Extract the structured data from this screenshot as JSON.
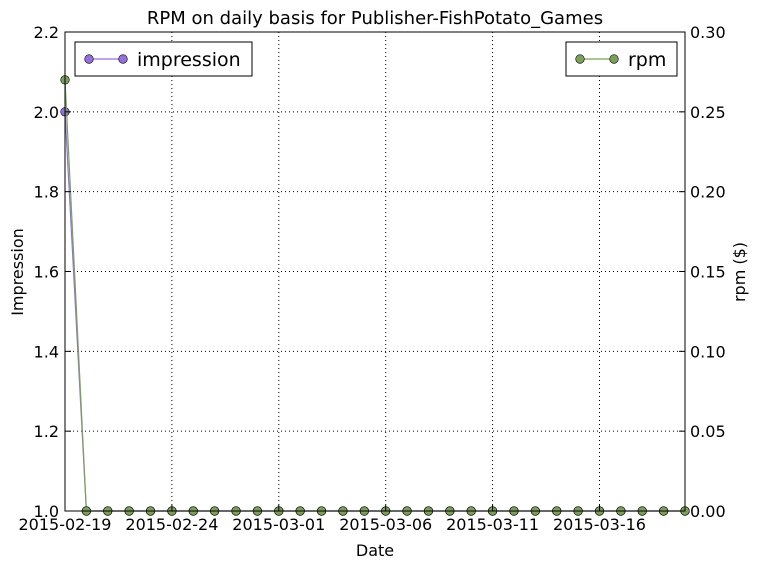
{
  "chart_data": {
    "type": "line",
    "title": "RPM on daily basis for Publisher-FishPotato_Games",
    "xlabel": "Date",
    "ylabel_left": "Impression",
    "ylabel_right": "rpm ($)",
    "x_tick_labels": [
      "2015-02-19",
      "2015-02-24",
      "2015-03-01",
      "2015-03-06",
      "2015-03-11",
      "2015-03-16"
    ],
    "left_y_ticks": [
      1.0,
      1.2,
      1.4,
      1.6,
      1.8,
      2.0,
      2.2
    ],
    "left_y_tick_labels": [
      "1.0",
      "1.2",
      "1.4",
      "1.6",
      "1.8",
      "2.0",
      "2.2"
    ],
    "right_y_ticks": [
      0.0,
      0.05,
      0.1,
      0.15,
      0.2,
      0.25,
      0.3
    ],
    "right_y_tick_labels": [
      "0.00",
      "0.05",
      "0.10",
      "0.15",
      "0.20",
      "0.25",
      "0.30"
    ],
    "ylim_left": [
      1.0,
      2.2
    ],
    "ylim_right": [
      0.0,
      0.3
    ],
    "grid": true,
    "x": [
      "2015-02-19",
      "2015-02-20",
      "2015-02-21",
      "2015-02-22",
      "2015-02-23",
      "2015-02-24",
      "2015-02-25",
      "2015-02-26",
      "2015-02-27",
      "2015-02-28",
      "2015-03-01",
      "2015-03-02",
      "2015-03-03",
      "2015-03-04",
      "2015-03-05",
      "2015-03-06",
      "2015-03-07",
      "2015-03-08",
      "2015-03-09",
      "2015-03-10",
      "2015-03-11",
      "2015-03-12",
      "2015-03-13",
      "2015-03-14",
      "2015-03-15",
      "2015-03-16",
      "2015-03-17",
      "2015-03-18",
      "2015-03-19",
      "2015-03-20"
    ],
    "series": [
      {
        "name": "impression",
        "axis": "left",
        "color": "#9370db",
        "legend_position": "upper-left",
        "values": [
          2,
          1,
          1,
          1,
          1,
          1,
          1,
          1,
          1,
          1,
          1,
          1,
          1,
          1,
          1,
          1,
          1,
          1,
          1,
          1,
          1,
          1,
          1,
          1,
          1,
          1,
          1,
          1,
          1,
          1
        ]
      },
      {
        "name": "rpm",
        "axis": "right",
        "color": "#7ba05b",
        "legend_position": "upper-right",
        "values": [
          0.27,
          0,
          0,
          0,
          0,
          0,
          0,
          0,
          0,
          0,
          0,
          0,
          0,
          0,
          0,
          0,
          0,
          0,
          0,
          0,
          0,
          0,
          0,
          0,
          0,
          0,
          0,
          0,
          0,
          0
        ]
      }
    ]
  }
}
